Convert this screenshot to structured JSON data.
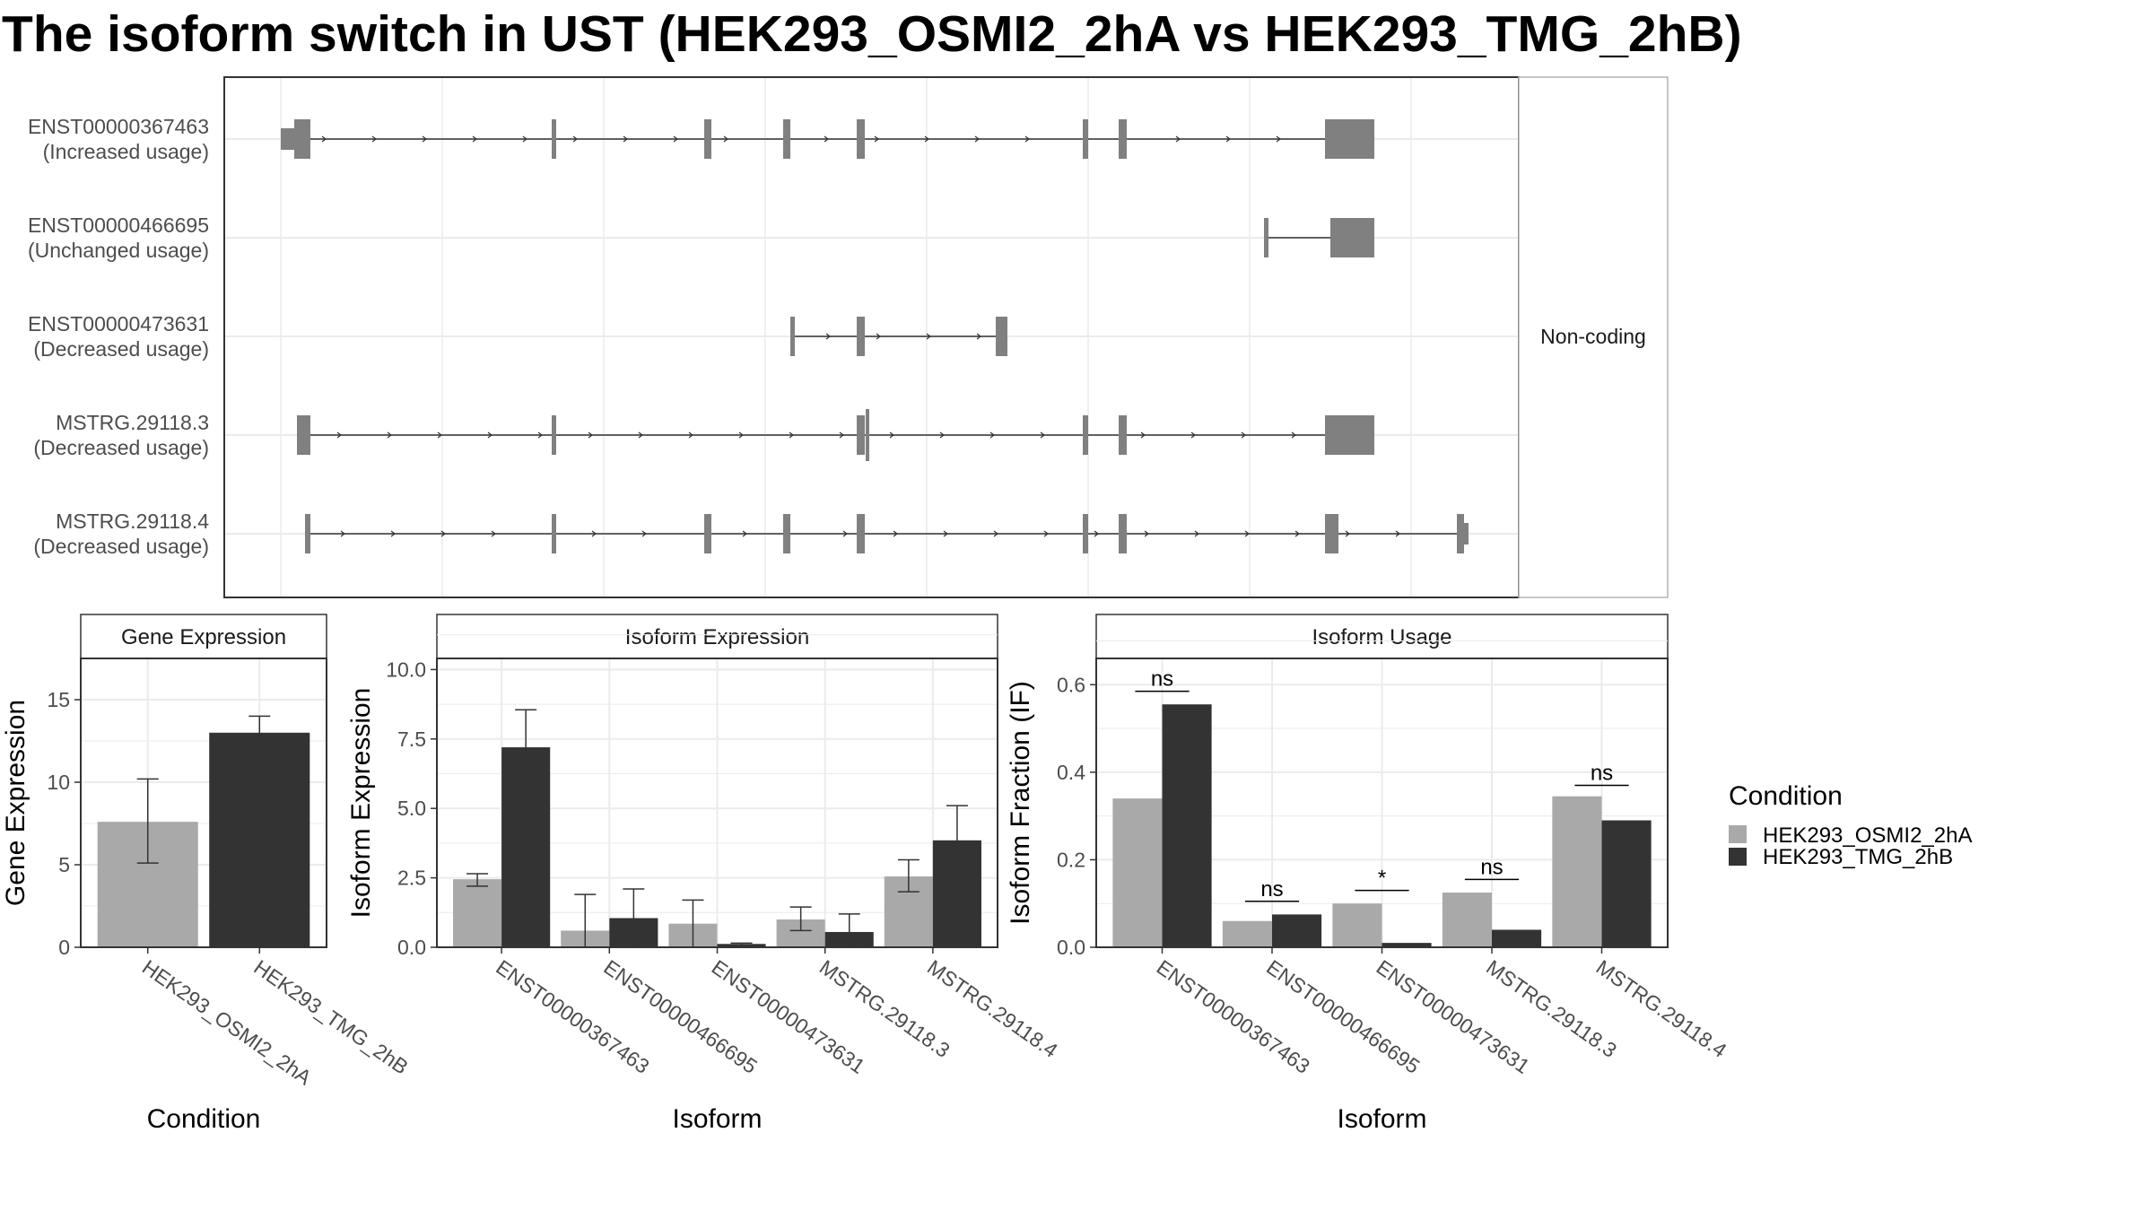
{
  "title": "The isoform switch in UST (HEK293_OSMI2_2hA vs HEK293_TMG_2hB)",
  "colors": {
    "condition_a": "#a9a9a9",
    "condition_b": "#333333",
    "exon": "#808080",
    "grid": "#ebebeb",
    "strip_fill": "#ffffff",
    "axis_text": "#4d4d4d"
  },
  "structure": {
    "facet_label": "Non-coding",
    "intron_direction": "forward",
    "transcripts": [
      {
        "id": "ENST00000367463",
        "usage": "(Increased usage)"
      },
      {
        "id": "ENST00000466695",
        "usage": "(Unchanged usage)"
      },
      {
        "id": "ENST00000473631",
        "usage": "(Decreased usage)"
      },
      {
        "id": "MSTRG.29118.3",
        "usage": "(Decreased usage)"
      },
      {
        "id": "MSTRG.29118.4",
        "usage": "(Decreased usage)"
      }
    ]
  },
  "legend": {
    "title": "Condition",
    "items": [
      "HEK293_OSMI2_2hA",
      "HEK293_TMG_2hB"
    ]
  },
  "chart_data": [
    {
      "type": "bar",
      "title": "Gene Expression",
      "xlabel": "Condition",
      "ylabel": "Gene Expression",
      "ylim": [
        0,
        17.5
      ],
      "yticks": [
        0,
        5,
        10,
        15
      ],
      "ytick_labels": [
        "0",
        "5",
        "10",
        "15"
      ],
      "categories": [
        "HEK293_OSMI2_2hA",
        "HEK293_TMG_2hB"
      ],
      "values": [
        7.6,
        13.0
      ],
      "error_low": [
        5.1,
        12.1
      ],
      "error_high": [
        10.2,
        14.0
      ]
    },
    {
      "type": "bar",
      "title": "Isoform Expression",
      "xlabel": "Isoform",
      "ylabel": "Isoform Expression",
      "ylim": [
        0,
        10.4
      ],
      "yticks": [
        0,
        2.5,
        5,
        7.5,
        10
      ],
      "ytick_labels": [
        "0.0",
        "2.5",
        "5.0",
        "7.5",
        "10.0"
      ],
      "categories": [
        "ENST00000367463",
        "ENST00000466695",
        "ENST00000473631",
        "MSTRG.29118.3",
        "MSTRG.29118.4"
      ],
      "series": [
        {
          "name": "HEK293_OSMI2_2hA",
          "values": [
            2.45,
            0.6,
            0.85,
            1.0,
            2.55
          ],
          "error_low": [
            2.2,
            0.0,
            0.0,
            0.6,
            2.0
          ],
          "error_high": [
            2.65,
            1.9,
            1.7,
            1.45,
            3.15
          ]
        },
        {
          "name": "HEK293_TMG_2hB",
          "values": [
            7.2,
            1.05,
            0.12,
            0.55,
            3.85
          ],
          "error_low": [
            5.9,
            0.0,
            0.08,
            0.0,
            2.6
          ],
          "error_high": [
            8.55,
            2.1,
            0.15,
            1.2,
            5.1
          ]
        }
      ]
    },
    {
      "type": "bar",
      "title": "Isoform Usage",
      "xlabel": "Isoform",
      "ylabel": "Isoform Fraction (IF)",
      "ylim": [
        0,
        0.66
      ],
      "yticks": [
        0,
        0.2,
        0.4,
        0.6
      ],
      "ytick_labels": [
        "0.0",
        "0.2",
        "0.4",
        "0.6"
      ],
      "categories": [
        "ENST00000367463",
        "ENST00000466695",
        "ENST00000473631",
        "MSTRG.29118.3",
        "MSTRG.29118.4"
      ],
      "series": [
        {
          "name": "HEK293_OSMI2_2hA",
          "values": [
            0.34,
            0.06,
            0.1,
            0.125,
            0.345
          ]
        },
        {
          "name": "HEK293_TMG_2hB",
          "values": [
            0.555,
            0.075,
            0.01,
            0.04,
            0.29
          ]
        }
      ],
      "significance": [
        {
          "label": "ns",
          "y": 0.585
        },
        {
          "label": "ns",
          "y": 0.105
        },
        {
          "label": "*",
          "y": 0.13
        },
        {
          "label": "ns",
          "y": 0.155
        },
        {
          "label": "ns",
          "y": 0.37
        }
      ]
    }
  ]
}
